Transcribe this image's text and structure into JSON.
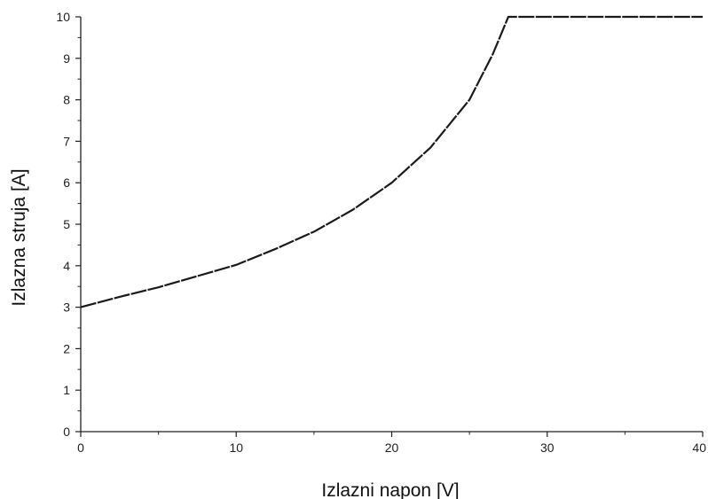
{
  "chart_data": {
    "type": "line",
    "title": "",
    "xlabel": "Izlazni napon [V]",
    "ylabel": "Izlazna struja [A]",
    "xlim": [
      0,
      40
    ],
    "ylim": [
      0,
      10
    ],
    "x_ticks": [
      {
        "value": 0,
        "label": "0"
      },
      {
        "value": 10,
        "label": "10"
      },
      {
        "value": 20,
        "label": "20"
      },
      {
        "value": 30,
        "label": "30"
      },
      {
        "value": 40,
        "label": "40"
      }
    ],
    "y_ticks": [
      {
        "value": 0,
        "label": "0"
      },
      {
        "value": 1,
        "label": "1"
      },
      {
        "value": 2,
        "label": "2"
      },
      {
        "value": 3,
        "label": "3"
      },
      {
        "value": 4,
        "label": "4"
      },
      {
        "value": 5,
        "label": "5"
      },
      {
        "value": 6,
        "label": "6"
      },
      {
        "value": 7,
        "label": "7"
      },
      {
        "value": 8,
        "label": "8"
      },
      {
        "value": 9,
        "label": "9"
      },
      {
        "value": 10,
        "label": "10"
      }
    ],
    "grid": false,
    "legend": "none",
    "series": [
      {
        "color": "#1a1a1a",
        "x": [
          0,
          2.5,
          5,
          7.5,
          10,
          12.5,
          15,
          17.5,
          20,
          22.5,
          25,
          26.5,
          27.5,
          30,
          35,
          40
        ],
        "y": [
          3.0,
          3.25,
          3.48,
          3.75,
          4.02,
          4.4,
          4.82,
          5.35,
          6.0,
          6.85,
          8.0,
          9.1,
          10.0,
          10.0,
          10.0,
          10.0
        ]
      }
    ]
  }
}
